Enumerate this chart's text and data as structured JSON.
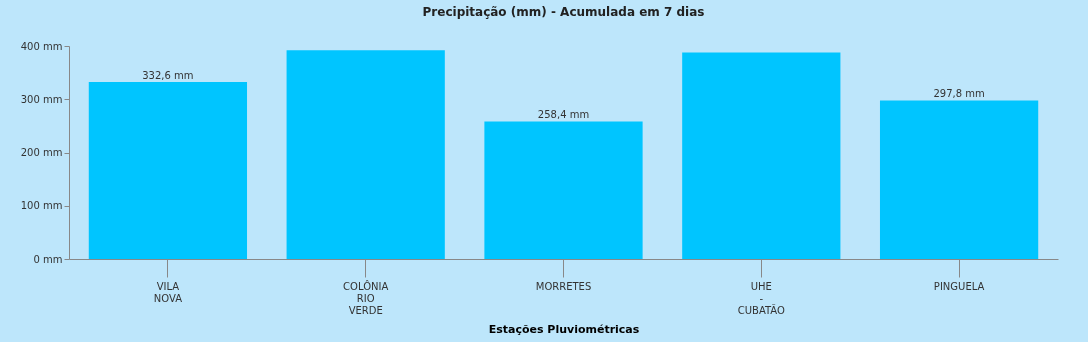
{
  "chart_data": {
    "type": "bar",
    "title": "Precipitação (mm) - Acumulada em 7 dias",
    "xlabel": "Estações Pluviométricas",
    "categories": [
      "VILA\nNOVA",
      "COLÔNIA\nRIO\nVERDE",
      "MORRETES",
      "UHE\n-\nCUBATÃO",
      "PINGUELA"
    ],
    "values": [
      332.6,
      392,
      258.4,
      388,
      297.8
    ],
    "value_labels": [
      "332,6 mm",
      null,
      "258,4 mm",
      null,
      "297,8 mm"
    ],
    "color": "#00c5ff",
    "ylim": [
      0,
      400
    ],
    "yticks": [
      {
        "value": 0,
        "label": "0 mm"
      },
      {
        "value": 100,
        "label": "100 mm"
      },
      {
        "value": 200,
        "label": "200 mm"
      },
      {
        "value": 300,
        "label": "300 mm"
      },
      {
        "value": 400,
        "label": "400 mm"
      }
    ],
    "grid": false
  }
}
